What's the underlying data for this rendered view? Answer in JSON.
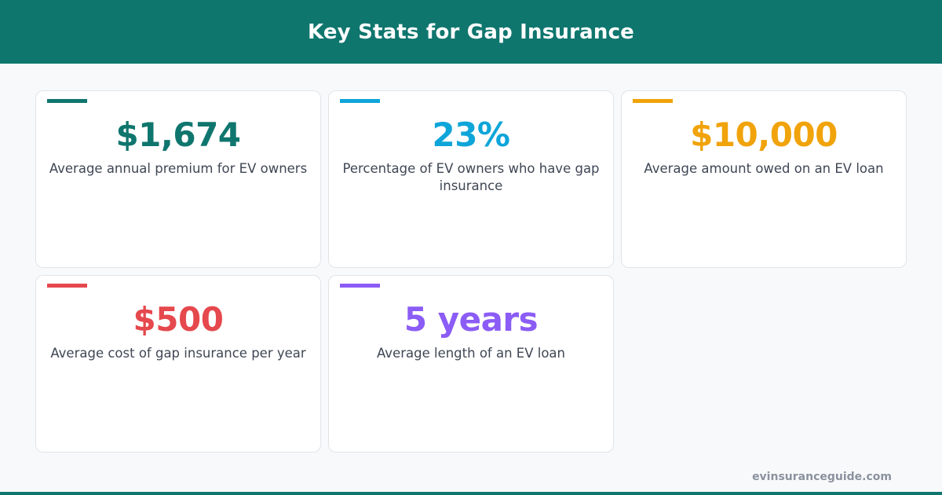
{
  "header": {
    "title": "Key Stats for Gap Insurance"
  },
  "stats": [
    {
      "value": "$1,674",
      "description": "Average annual premium for EV owners",
      "color": "#0f766e"
    },
    {
      "value": "23%",
      "description": "Percentage of EV owners who have gap insurance",
      "color": "#0ea5d9"
    },
    {
      "value": "$10,000",
      "description": "Average amount owed on an EV loan",
      "color": "#f0a30a"
    },
    {
      "value": "$500",
      "description": "Average cost of gap insurance per year",
      "color": "#e5484d"
    },
    {
      "value": "5 years",
      "description": "Average length of an EV loan",
      "color": "#8b5cf6"
    }
  ],
  "footer": {
    "site": "evinsuranceguide.com"
  },
  "colors": {
    "brand": "#0f766e",
    "background": "#f8f9fb",
    "text": "#3f4754"
  }
}
